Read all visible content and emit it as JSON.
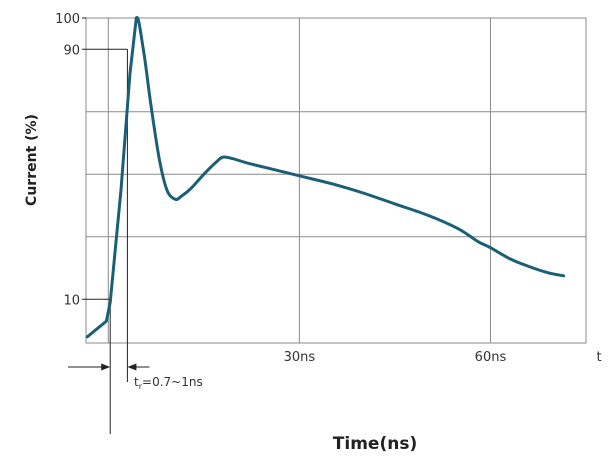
{
  "chart_data": {
    "type": "line",
    "xlabel": "Time(ns)",
    "ylabel": "Current (%)",
    "x_axis_end_label": "t",
    "xlim": [
      -3.5,
      75
    ],
    "ylim": [
      -4,
      100
    ],
    "y_ticks": [
      {
        "value": 100,
        "label": "100"
      },
      {
        "value": 90,
        "label": "90"
      },
      {
        "value": 10,
        "label": "10"
      }
    ],
    "x_ticks": [
      {
        "value": 30,
        "label": "30ns"
      },
      {
        "value": 60,
        "label": "60ns"
      }
    ],
    "grid": {
      "x": [
        0,
        30,
        60,
        75
      ],
      "y": [
        30,
        50,
        70,
        100
      ]
    },
    "series": [
      {
        "color": "#1b5f77",
        "points": [
          [
            -3.3,
            -2
          ],
          [
            -0.3,
            3
          ],
          [
            0.3,
            9
          ],
          [
            2.0,
            45
          ],
          [
            3.4,
            82
          ],
          [
            4.4,
            100
          ],
          [
            5.5,
            90
          ],
          [
            6.7,
            72
          ],
          [
            8.0,
            55
          ],
          [
            9.2,
            45
          ],
          [
            10.5,
            42
          ],
          [
            11.5,
            43
          ],
          [
            13.0,
            45.5
          ],
          [
            15.0,
            50
          ],
          [
            17.0,
            54
          ],
          [
            18.0,
            55.5
          ],
          [
            19.5,
            55
          ],
          [
            22.0,
            53.5
          ],
          [
            26.0,
            51.5
          ],
          [
            30.0,
            49.5
          ],
          [
            35.0,
            47
          ],
          [
            40.0,
            44
          ],
          [
            45.0,
            40.5
          ],
          [
            50.0,
            37
          ],
          [
            55.0,
            32.5
          ],
          [
            58.0,
            28.5
          ],
          [
            60.0,
            26.5
          ],
          [
            63.0,
            23
          ],
          [
            66.0,
            20.5
          ],
          [
            69.0,
            18.5
          ],
          [
            71.5,
            17.5
          ]
        ]
      }
    ],
    "annotations": {
      "rise_time_label": "t",
      "rise_time_subscript": "r",
      "rise_time_value": "=0.7~1ns"
    }
  }
}
